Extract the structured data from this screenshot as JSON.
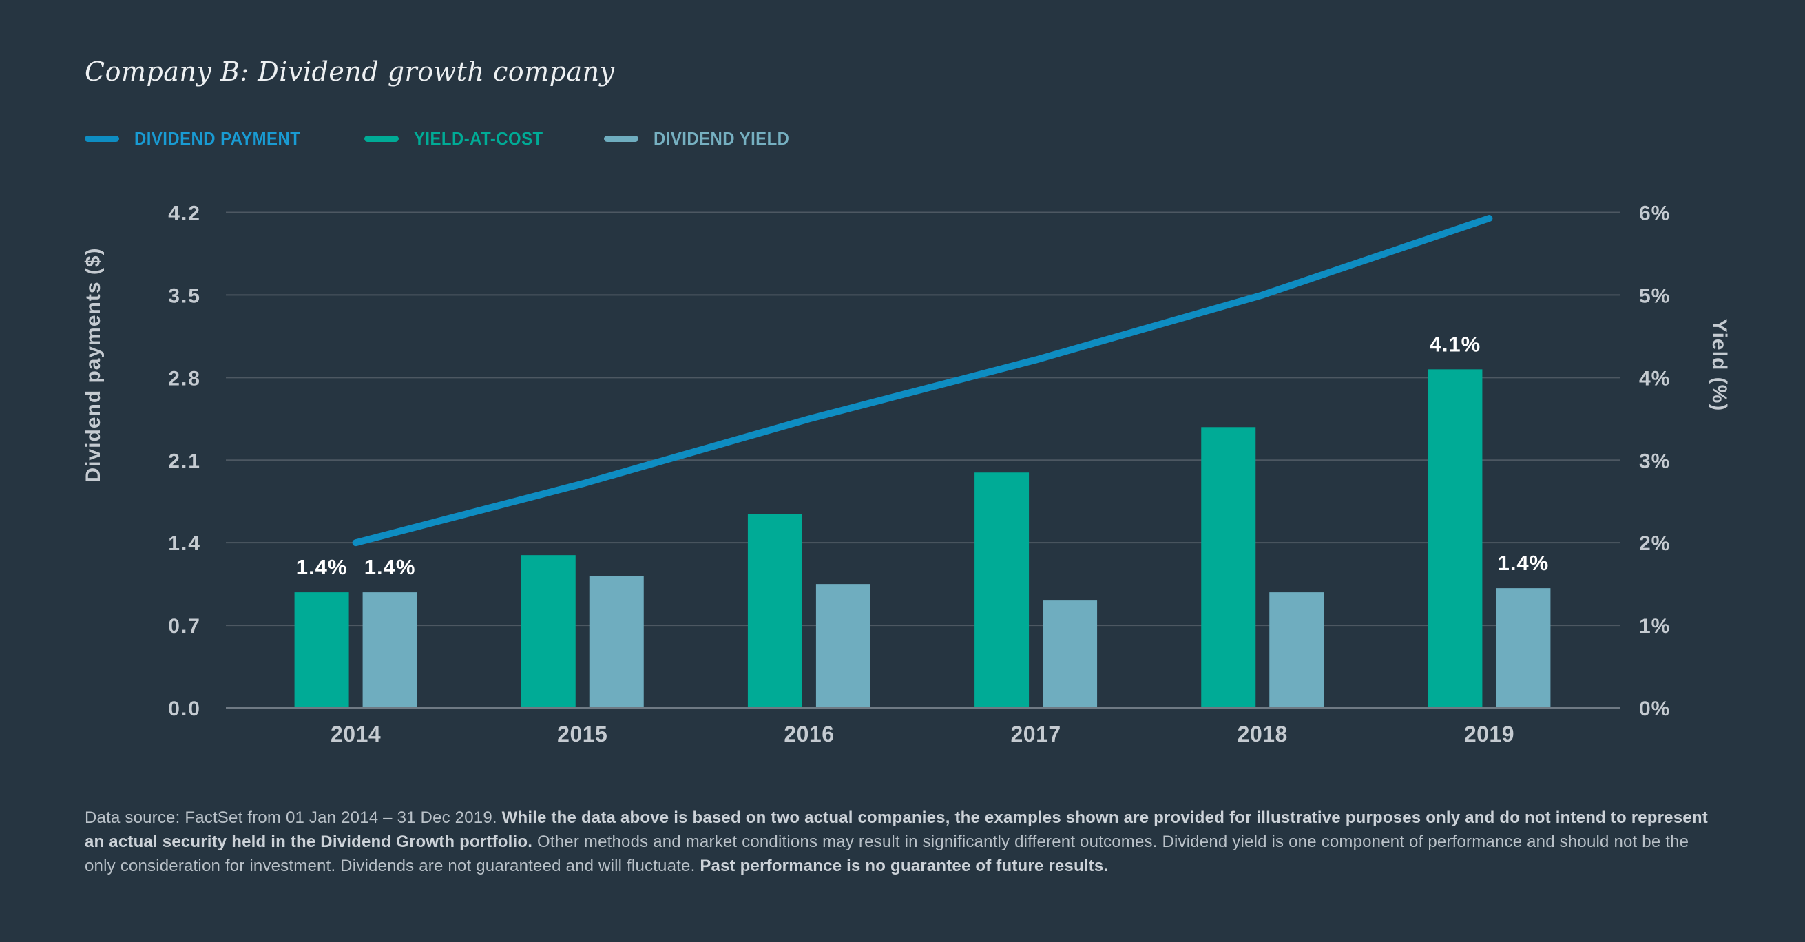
{
  "title": "Company B: Dividend growth company",
  "colors": {
    "background": "#263541",
    "teal_bar": "#00ab96",
    "light_blue_bar": "#6fadbf",
    "line_blue": "#0e8dc2",
    "legend_blue_text": "#199bd3",
    "legend_teal_text": "#00ab96",
    "legend_light_text": "#76b0c1",
    "gridline": "#4d5862",
    "axis_baseline": "#6f7a84",
    "axis_text": "#c5cbd1",
    "title_text": "#edf0f2",
    "annotation_text": "#ffffff"
  },
  "legend": [
    {
      "label": "DIVIDEND PAYMENT",
      "text_color": "#199bd3",
      "swatch_color": "#0e8dc2"
    },
    {
      "label": "YIELD-AT-COST",
      "text_color": "#00ab96",
      "swatch_color": "#00ab96"
    },
    {
      "label": "DIVIDEND YIELD",
      "text_color": "#76b0c1",
      "swatch_color": "#6fadbf"
    }
  ],
  "chart_data": {
    "type": "combo",
    "grid": true,
    "legend_position": "top-left",
    "categories": [
      "2014",
      "2015",
      "2016",
      "2017",
      "2018",
      "2019"
    ],
    "left_axis": {
      "label": "Dividend payments ($)",
      "min": 0,
      "max": 4.2,
      "ticks": [
        "4.2",
        "3.5",
        "2.8",
        "2.1",
        "1.4",
        "0.7",
        "0.0"
      ]
    },
    "right_axis": {
      "label": "Yield (%)",
      "min": 0,
      "max": 6,
      "ticks": [
        "6%",
        "5%",
        "4%",
        "3%",
        "2%",
        "1%",
        "0%"
      ]
    },
    "series": [
      {
        "name": "DIVIDEND PAYMENT",
        "type": "line",
        "axis": "left",
        "unit": "$",
        "color": "#0e8dc2",
        "values": [
          1.4,
          1.9,
          2.45,
          2.95,
          3.5,
          4.15
        ]
      },
      {
        "name": "YIELD-AT-COST",
        "type": "bar",
        "axis": "right",
        "unit": "%",
        "color": "#00ab96",
        "values": [
          1.4,
          1.85,
          2.35,
          2.85,
          3.4,
          4.1
        ]
      },
      {
        "name": "DIVIDEND YIELD",
        "type": "bar",
        "axis": "right",
        "unit": "%",
        "color": "#6fadbf",
        "values": [
          1.4,
          1.6,
          1.5,
          1.3,
          1.4,
          1.45
        ]
      }
    ],
    "annotations": [
      {
        "category_index": 0,
        "series": "YIELD-AT-COST",
        "text": "1.4%"
      },
      {
        "category_index": 0,
        "series": "DIVIDEND YIELD",
        "text": "1.4%"
      },
      {
        "category_index": 5,
        "series": "YIELD-AT-COST",
        "text": "4.1%"
      },
      {
        "category_index": 5,
        "series": "DIVIDEND YIELD",
        "text": "1.4%"
      }
    ]
  },
  "footnote": {
    "segments": [
      {
        "text": "Data source: FactSet from 01 Jan 2014 – 31 Dec 2019. ",
        "bold": false
      },
      {
        "text": "While the data above is based on two actual companies, the examples shown are provided for illustrative purposes only and do not intend to represent an actual security held in the Dividend Growth portfolio. ",
        "bold": true
      },
      {
        "text": "Other methods and market conditions may result in significantly different outcomes. Dividend yield is one component of performance and should not be the only consideration for investment. Dividends are not guaranteed and will fluctuate. ",
        "bold": false
      },
      {
        "text": "Past performance is no guarantee of future results.",
        "bold": true
      }
    ]
  }
}
